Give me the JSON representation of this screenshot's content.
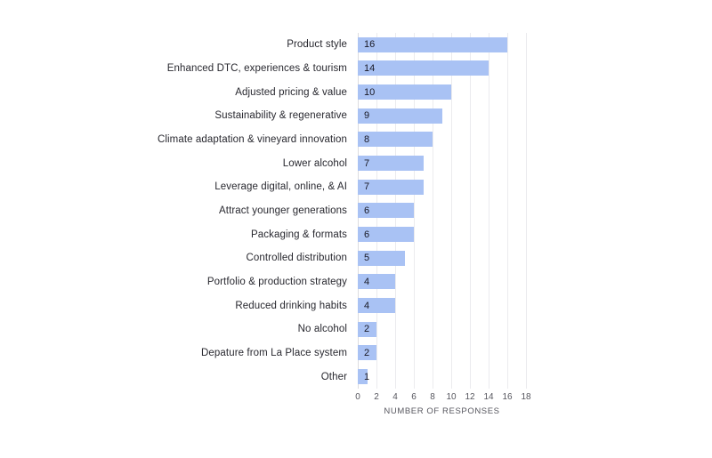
{
  "chart_data": {
    "type": "bar",
    "orientation": "horizontal",
    "categories": [
      "Product style",
      "Enhanced DTC, experiences & tourism",
      "Adjusted pricing & value",
      "Sustainability & regenerative",
      "Climate adaptation & vineyard innovation",
      "Lower alcohol",
      "Leverage digital, online, & AI",
      "Attract younger generations",
      "Packaging & formats",
      "Controlled distribution",
      "Portfolio & production strategy",
      "Reduced drinking habits",
      "No alcohol",
      "Depature from La Place system",
      "Other"
    ],
    "values": [
      16,
      14,
      10,
      9,
      8,
      7,
      7,
      6,
      6,
      5,
      4,
      4,
      2,
      2,
      1
    ],
    "title": "",
    "xlabel": "NUMBER OF RESPONSES",
    "ylabel": "",
    "xlim": [
      0,
      18
    ],
    "xticks": [
      0,
      2,
      4,
      6,
      8,
      10,
      12,
      14,
      16,
      18
    ],
    "grid": "vertical",
    "legend": "none",
    "value_labels": "inside-left",
    "colors": {
      "bar": "#a9c2f4",
      "value_label": "#181824",
      "category_label": "#28282f",
      "tick_label": "#56565e",
      "gridline": "#ebebee",
      "zero_line": "#dcdce0",
      "background": "#ffffff"
    }
  }
}
